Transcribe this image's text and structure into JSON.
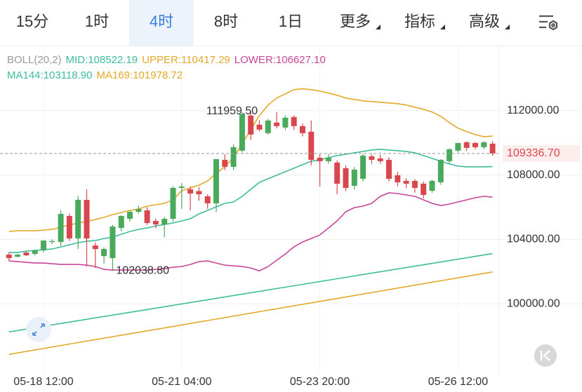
{
  "tabs": [
    {
      "label": "15分"
    },
    {
      "label": "1时"
    },
    {
      "label": "4时",
      "selected": true
    },
    {
      "label": "8时"
    },
    {
      "label": "1日"
    },
    {
      "label": "更多",
      "menu": true
    },
    {
      "label": "指标",
      "menu": true
    },
    {
      "label": "高级",
      "menu": true
    }
  ],
  "chart_data": {
    "type": "candlestick",
    "legend": [
      [
        {
          "text": "BOLL(20,2)",
          "color": "#9a9a9a"
        },
        {
          "text": "MID:108522.19",
          "color": "#3dbd9a"
        },
        {
          "text": "UPPER:110417.29",
          "color": "#e5a82a"
        },
        {
          "text": "LOWER:106627.10",
          "color": "#c8469a"
        }
      ],
      [
        {
          "text": "MA144:103118.90",
          "color": "#3dbd9a"
        },
        {
          "text": "MA169:101978.72",
          "color": "#e5a82a"
        }
      ]
    ],
    "categories": [
      null,
      null,
      null,
      null,
      "05-18 12:00",
      null,
      null,
      null,
      null,
      null,
      null,
      null,
      null,
      null,
      null,
      null,
      null,
      null,
      null,
      null,
      "05-21 04:00",
      null,
      null,
      null,
      null,
      null,
      null,
      null,
      null,
      null,
      null,
      null,
      null,
      null,
      null,
      null,
      "05-23 20:00",
      null,
      null,
      null,
      null,
      null,
      null,
      null,
      null,
      null,
      null,
      null,
      null,
      null,
      null,
      null,
      "05-26 12:00",
      null,
      null,
      null,
      null
    ],
    "open": [
      103054,
      102924,
      103185,
      103098,
      103316,
      103840,
      103840,
      105454,
      104058,
      106458,
      103622,
      102967,
      102836,
      104712,
      105280,
      105716,
      105803,
      105149,
      104931,
      105280,
      107200,
      107113,
      107000,
      106676,
      106240,
      108945,
      108509,
      109513,
      111695,
      111127,
      110604,
      111258,
      110953,
      111607,
      111040,
      110691,
      109076,
      108858,
      108771,
      108422,
      107331,
      107767,
      109163,
      109033,
      108945,
      107985,
      107636,
      107636,
      107462,
      107025,
      107549,
      108858,
      109513,
      110036,
      109993,
      109731,
      109949
    ],
    "high": [
      103185,
      103098,
      103250,
      103350,
      103950,
      104000,
      105800,
      105600,
      106700,
      107100,
      103800,
      103500,
      104900,
      105500,
      105800,
      106100,
      106000,
      105300,
      105400,
      107300,
      107500,
      107300,
      107250,
      106800,
      108989,
      109300,
      109900,
      111900,
      111959.5,
      111400,
      111476,
      111913,
      111700,
      111700,
      111200,
      111389,
      109300,
      109300,
      108900,
      108600,
      108500,
      109300,
      109300,
      109250,
      109100,
      108200,
      107800,
      107750,
      107600,
      107700,
      108989,
      109650,
      110000,
      110100,
      110050,
      110100,
      110100
    ],
    "low": [
      102662,
      102880,
      102967,
      103000,
      103200,
      103700,
      103600,
      103900,
      103400,
      102300,
      102225,
      102500,
      102038.8,
      104500,
      105100,
      105600,
      104900,
      104700,
      104145,
      105100,
      105900,
      105800,
      106400,
      105900,
      105700,
      108300,
      108300,
      109400,
      110200,
      110700,
      110500,
      110900,
      110800,
      110800,
      110400,
      108600,
      107287,
      108700,
      106807,
      107000,
      107100,
      107600,
      108700,
      108700,
      107600,
      107300,
      107200,
      106900,
      106545,
      106900,
      107400,
      108700,
      109400,
      109500,
      109600,
      109600,
      109200
    ],
    "close": [
      102836,
      103054,
      103011,
      103316,
      103927,
      103900,
      105585,
      104058,
      106458,
      104058,
      103400,
      103404,
      104800,
      105454,
      105716,
      105891,
      105018,
      104931,
      105280,
      107200,
      107287,
      106851,
      106800,
      106240,
      108989,
      108509,
      109731,
      111782,
      110516,
      110822,
      111389,
      111040,
      111564,
      111040,
      110604,
      108945,
      108858,
      109076,
      107462,
      107200,
      108334,
      109207,
      108945,
      108858,
      107767,
      107549,
      107462,
      107200,
      106764,
      107636,
      108945,
      109600,
      109993,
      109687,
      109731,
      110036,
      109336.7
    ],
    "up_color": "#4aaa5c",
    "down_color": "#d9474d",
    "series": [
      {
        "color": "#e5a82a",
        "values": [
          104494,
          104538,
          104538,
          104538,
          104581,
          104625,
          104756,
          104887,
          105018,
          105105,
          105236,
          105367,
          105541,
          105672,
          105803,
          105890,
          106065,
          106152,
          106240,
          106458,
          107025,
          107200,
          107374,
          107636,
          108116,
          108509,
          109076,
          109949,
          110822,
          111695,
          112349,
          112786,
          113047,
          113309,
          113353,
          113309,
          113222,
          113091,
          112960,
          112786,
          112698,
          112611,
          112567,
          112524,
          112480,
          112436,
          112349,
          112218,
          112087,
          111913,
          111651,
          111258,
          110909,
          110691,
          110516,
          110385,
          110417.29
        ]
      },
      {
        "color": "#3dbd9a",
        "values": [
          103185,
          103185,
          103272,
          103316,
          103359,
          103403,
          103534,
          103665,
          103796,
          103883,
          103927,
          104058,
          104145,
          104319,
          104494,
          104625,
          104712,
          104843,
          104930,
          105018,
          105149,
          105279,
          105585,
          105803,
          106021,
          106240,
          106327,
          106676,
          107112,
          107549,
          107767,
          107985,
          108203,
          108422,
          108640,
          108858,
          108945,
          109076,
          109207,
          109294,
          109382,
          109469,
          109556,
          109600,
          109556,
          109513,
          109469,
          109382,
          109207,
          109032,
          108858,
          108683,
          108552,
          108509,
          108509,
          108509,
          108522.19
        ]
      },
      {
        "color": "#c8469a",
        "values": [
          102661,
          102617,
          102574,
          102530,
          102530,
          102486,
          102443,
          102443,
          102443,
          102399,
          102312,
          102137,
          102094,
          102094,
          102094,
          102094,
          102094,
          102137,
          102181,
          102268,
          102312,
          102443,
          102617,
          102661,
          102530,
          102399,
          102356,
          102312,
          102225,
          102050,
          102312,
          102705,
          103097,
          103534,
          103839,
          104058,
          104276,
          104712,
          105149,
          105716,
          105978,
          106065,
          106240,
          106676,
          106894,
          106850,
          106763,
          106676,
          106458,
          106240,
          106109,
          106196,
          106327,
          106458,
          106589,
          106676,
          106627.1
        ]
      },
      {
        "color": "#3dbd9a",
        "x": [
          0,
          8,
          16,
          24,
          32,
          40,
          48,
          56
        ],
        "values": [
          98253,
          98948,
          99643,
          100338,
          101033,
          101728,
          102424,
          103118.9
        ]
      },
      {
        "color": "#e5a82a",
        "x": [
          0,
          8,
          16,
          24,
          32,
          40,
          48,
          56
        ],
        "values": [
          96857,
          97589,
          98320,
          99052,
          99784,
          100515,
          101247,
          101978.72
        ]
      }
    ],
    "ylim": [
      96000,
      116000
    ],
    "yticks": [
      {
        "value": 100000,
        "label": "100000.00"
      },
      {
        "value": 104000,
        "label": "104000.00"
      },
      {
        "value": 108000,
        "label": "108000.00"
      },
      {
        "value": 112000,
        "label": "112000.00"
      }
    ],
    "grid": true,
    "last_price": {
      "value": 109336.7,
      "label": "109336.70"
    },
    "max_label": {
      "value": 111959.5,
      "label": "111959.50"
    },
    "min_label": {
      "value": 102038.8,
      "label": "102038.80"
    }
  }
}
